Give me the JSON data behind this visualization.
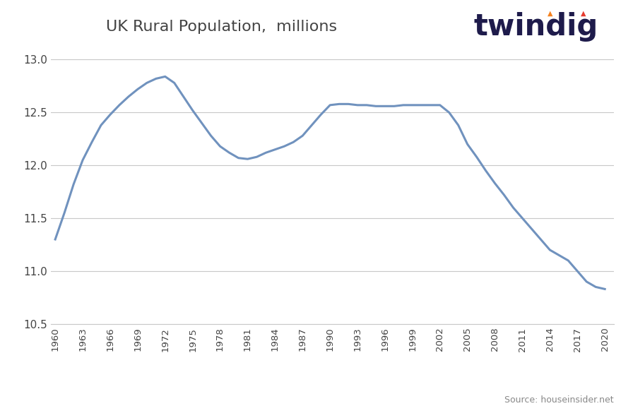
{
  "title": "UK Rural Population,  millions",
  "title_fontsize": 16,
  "line_color": "#7092be",
  "line_width": 2.2,
  "background_color": "#ffffff",
  "plot_bg_color": "#ffffff",
  "grid_color": "#c8c8c8",
  "years": [
    1960,
    1961,
    1962,
    1963,
    1964,
    1965,
    1966,
    1967,
    1968,
    1969,
    1970,
    1971,
    1972,
    1973,
    1974,
    1975,
    1976,
    1977,
    1978,
    1979,
    1980,
    1981,
    1982,
    1983,
    1984,
    1985,
    1986,
    1987,
    1988,
    1989,
    1990,
    1991,
    1992,
    1993,
    1994,
    1995,
    1996,
    1997,
    1998,
    1999,
    2000,
    2001,
    2002,
    2003,
    2004,
    2005,
    2006,
    2007,
    2008,
    2009,
    2010,
    2011,
    2012,
    2013,
    2014,
    2015,
    2016,
    2017,
    2018,
    2019,
    2020
  ],
  "values": [
    11.3,
    11.55,
    11.82,
    12.05,
    12.22,
    12.38,
    12.48,
    12.57,
    12.65,
    12.72,
    12.78,
    12.82,
    12.84,
    12.78,
    12.65,
    12.52,
    12.4,
    12.28,
    12.18,
    12.12,
    12.07,
    12.06,
    12.08,
    12.12,
    12.15,
    12.18,
    12.22,
    12.28,
    12.38,
    12.48,
    12.57,
    12.58,
    12.58,
    12.57,
    12.57,
    12.56,
    12.56,
    12.56,
    12.57,
    12.57,
    12.57,
    12.57,
    12.57,
    12.5,
    12.38,
    12.2,
    12.08,
    11.95,
    11.83,
    11.72,
    11.6,
    11.5,
    11.4,
    11.3,
    11.2,
    11.15,
    11.1,
    11.0,
    10.9,
    10.85,
    10.83
  ],
  "ylim": [
    10.5,
    13.05
  ],
  "yticks": [
    10.5,
    11.0,
    11.5,
    12.0,
    12.5,
    13.0
  ],
  "xtick_years": [
    1960,
    1963,
    1966,
    1969,
    1972,
    1975,
    1978,
    1981,
    1984,
    1987,
    1990,
    1993,
    1996,
    1999,
    2002,
    2005,
    2008,
    2011,
    2014,
    2017,
    2020
  ],
  "footer_text": "Source: houseinsider.net",
  "footer_color": "#aaaaaa",
  "twindig_main_color": "#1e1b4b",
  "twindig_fontsize": 30,
  "flame_color_left": "#f5821f",
  "flame_color_right": "#e63c2f"
}
